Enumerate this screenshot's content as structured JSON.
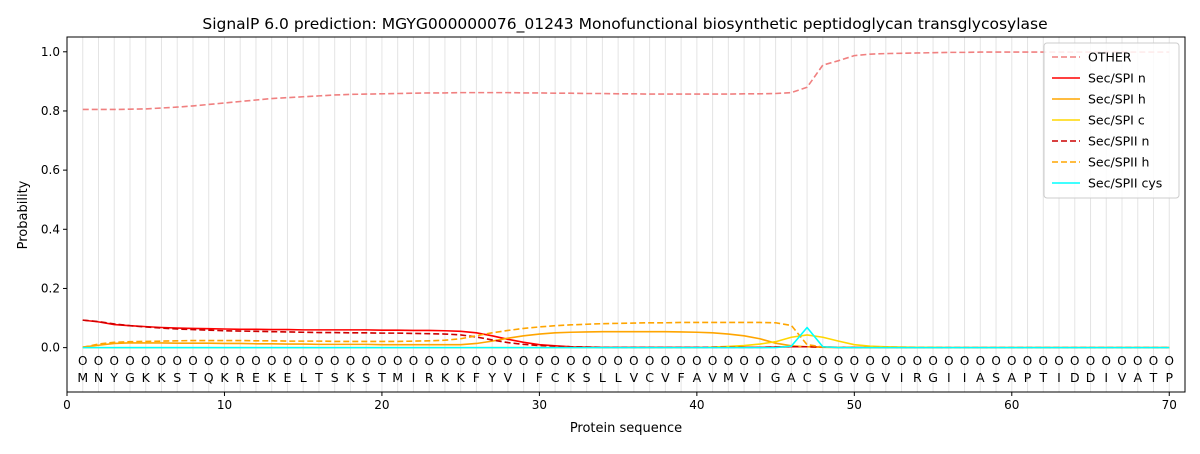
{
  "chart_data": {
    "type": "line",
    "title": "SignalP 6.0 prediction: MGYG000000076_01243 Monofunctional biosynthetic peptidoglycan transglycosylase",
    "xlabel": "Protein sequence",
    "ylabel": "Probability",
    "xlim": [
      0,
      71
    ],
    "ylim": [
      -0.15,
      1.05
    ],
    "xticks": [
      0,
      10,
      20,
      30,
      40,
      50,
      60,
      70
    ],
    "yticks": [
      0.0,
      0.2,
      0.4,
      0.6,
      0.8,
      1.0
    ],
    "xtick_labels": [
      "0",
      "10",
      "20",
      "30",
      "40",
      "50",
      "60",
      "70"
    ],
    "ytick_labels": [
      "0.0",
      "0.2",
      "0.4",
      "0.6",
      "0.8",
      "1.0"
    ],
    "grid": "vertical lines at each residue",
    "legend_position": "top-right",
    "sequence": [
      "M",
      "N",
      "Y",
      "G",
      "K",
      "K",
      "S",
      "T",
      "Q",
      "K",
      "R",
      "E",
      "K",
      "E",
      "L",
      "T",
      "S",
      "K",
      "S",
      "T",
      "M",
      "I",
      "R",
      "K",
      "K",
      "F",
      "Y",
      "V",
      "I",
      "F",
      "C",
      "K",
      "S",
      "L",
      "L",
      "V",
      "C",
      "V",
      "F",
      "A",
      "V",
      "M",
      "V",
      "I",
      "G",
      "A",
      "C",
      "S",
      "G",
      "V",
      "G",
      "V",
      "I",
      "R",
      "G",
      "I",
      "I",
      "A",
      "S",
      "A",
      "P",
      "T",
      "I",
      "D",
      "D",
      "I",
      "V",
      "A",
      "T",
      "P"
    ],
    "region_marker": "O",
    "series": [
      {
        "name": "OTHER",
        "color": "#f08080",
        "dash": "dashed",
        "values": [
          0.805,
          0.805,
          0.805,
          0.806,
          0.807,
          0.81,
          0.813,
          0.817,
          0.822,
          0.827,
          0.832,
          0.837,
          0.842,
          0.845,
          0.848,
          0.851,
          0.854,
          0.856,
          0.857,
          0.858,
          0.859,
          0.86,
          0.861,
          0.861,
          0.862,
          0.862,
          0.862,
          0.862,
          0.861,
          0.861,
          0.86,
          0.86,
          0.859,
          0.859,
          0.858,
          0.858,
          0.857,
          0.857,
          0.857,
          0.857,
          0.857,
          0.857,
          0.858,
          0.858,
          0.859,
          0.862,
          0.88,
          0.955,
          0.97,
          0.987,
          0.992,
          0.994,
          0.995,
          0.996,
          0.997,
          0.998,
          0.998,
          0.999,
          0.999,
          0.999,
          0.999,
          0.999,
          0.999,
          0.999,
          0.999,
          0.999,
          0.999,
          0.999,
          0.999,
          0.999
        ]
      },
      {
        "name": "Sec/SPI n",
        "color": "#ff0000",
        "dash": "solid",
        "values": [
          0.093,
          0.087,
          0.078,
          0.074,
          0.071,
          0.068,
          0.066,
          0.065,
          0.064,
          0.063,
          0.062,
          0.062,
          0.061,
          0.061,
          0.06,
          0.06,
          0.06,
          0.06,
          0.06,
          0.059,
          0.059,
          0.058,
          0.058,
          0.057,
          0.055,
          0.05,
          0.04,
          0.028,
          0.018,
          0.01,
          0.006,
          0.003,
          0.002,
          0.001,
          0.001,
          0.001,
          0.001,
          0.001,
          0.001,
          0.001,
          0.001,
          0.001,
          0.001,
          0.001,
          0.002,
          0.003,
          0.003,
          0.002,
          0.001,
          0.001,
          0,
          0,
          0,
          0,
          0,
          0,
          0,
          0,
          0,
          0,
          0,
          0,
          0,
          0,
          0,
          0,
          0,
          0,
          0,
          0
        ]
      },
      {
        "name": "Sec/SPI h",
        "color": "#ffa500",
        "dash": "solid",
        "values": [
          0.002,
          0.008,
          0.014,
          0.016,
          0.016,
          0.016,
          0.015,
          0.015,
          0.015,
          0.014,
          0.014,
          0.013,
          0.013,
          0.012,
          0.012,
          0.011,
          0.011,
          0.011,
          0.011,
          0.01,
          0.01,
          0.01,
          0.01,
          0.01,
          0.01,
          0.014,
          0.022,
          0.032,
          0.04,
          0.046,
          0.05,
          0.052,
          0.053,
          0.054,
          0.054,
          0.054,
          0.054,
          0.054,
          0.053,
          0.052,
          0.05,
          0.046,
          0.04,
          0.03,
          0.015,
          0.006,
          0.003,
          0.001,
          0,
          0,
          0,
          0,
          0,
          0,
          0,
          0,
          0,
          0,
          0,
          0,
          0,
          0,
          0,
          0,
          0,
          0,
          0,
          0,
          0,
          0
        ]
      },
      {
        "name": "Sec/SPI c",
        "color": "#ffd700",
        "dash": "solid",
        "values": [
          0,
          0,
          0,
          0,
          0,
          0,
          0,
          0,
          0,
          0,
          0,
          0,
          0,
          0,
          0,
          0,
          0,
          0,
          0,
          0,
          0,
          0,
          0,
          0,
          0,
          0,
          0,
          0,
          0,
          0,
          0,
          0,
          0,
          0,
          0,
          0,
          0,
          0,
          0,
          0,
          0.002,
          0.004,
          0.007,
          0.012,
          0.02,
          0.035,
          0.043,
          0.035,
          0.022,
          0.01,
          0.005,
          0.003,
          0.002,
          0.001,
          0.001,
          0,
          0,
          0,
          0,
          0,
          0,
          0,
          0,
          0,
          0,
          0,
          0,
          0,
          0,
          0
        ]
      },
      {
        "name": "Sec/SPII n",
        "color": "#cc0000",
        "dash": "dashed",
        "values": [
          0.093,
          0.088,
          0.08,
          0.074,
          0.07,
          0.066,
          0.063,
          0.061,
          0.059,
          0.057,
          0.056,
          0.055,
          0.054,
          0.053,
          0.052,
          0.051,
          0.051,
          0.05,
          0.05,
          0.049,
          0.049,
          0.048,
          0.047,
          0.046,
          0.043,
          0.036,
          0.026,
          0.017,
          0.011,
          0.007,
          0.005,
          0.003,
          0.002,
          0.001,
          0.001,
          0.001,
          0.001,
          0.001,
          0.001,
          0.001,
          0.001,
          0.001,
          0.001,
          0.001,
          0.002,
          0.003,
          0.003,
          0.002,
          0.001,
          0,
          0,
          0,
          0,
          0,
          0,
          0,
          0,
          0,
          0,
          0,
          0,
          0,
          0,
          0,
          0,
          0,
          0,
          0,
          0,
          0
        ]
      },
      {
        "name": "Sec/SPII h",
        "color": "#ffa500",
        "dash": "dashed",
        "values": [
          0.001,
          0.012,
          0.018,
          0.02,
          0.021,
          0.022,
          0.023,
          0.024,
          0.024,
          0.024,
          0.024,
          0.023,
          0.023,
          0.022,
          0.022,
          0.022,
          0.021,
          0.021,
          0.021,
          0.021,
          0.021,
          0.022,
          0.023,
          0.025,
          0.03,
          0.04,
          0.05,
          0.058,
          0.065,
          0.07,
          0.074,
          0.077,
          0.079,
          0.081,
          0.082,
          0.083,
          0.084,
          0.084,
          0.085,
          0.085,
          0.085,
          0.085,
          0.085,
          0.085,
          0.084,
          0.075,
          0.01,
          0.002,
          0.001,
          0,
          0,
          0,
          0,
          0,
          0,
          0,
          0,
          0,
          0,
          0,
          0,
          0,
          0,
          0,
          0,
          0,
          0,
          0,
          0,
          0
        ]
      },
      {
        "name": "Sec/SPII cys",
        "color": "#00ffff",
        "dash": "solid",
        "values": [
          0,
          0,
          0,
          0,
          0,
          0,
          0,
          0,
          0,
          0,
          0,
          0,
          0,
          0,
          0,
          0,
          0,
          0,
          0,
          0,
          0,
          0,
          0,
          0,
          0,
          0,
          0,
          0,
          0,
          0,
          0,
          0,
          0,
          0,
          0,
          0,
          0,
          0,
          0,
          0,
          0,
          0,
          0,
          0,
          0,
          0.005,
          0.068,
          0.003,
          0,
          0,
          0,
          0,
          0,
          0,
          0,
          0,
          0,
          0,
          0,
          0,
          0,
          0,
          0,
          0,
          0,
          0,
          0,
          0,
          0,
          0
        ]
      }
    ]
  }
}
